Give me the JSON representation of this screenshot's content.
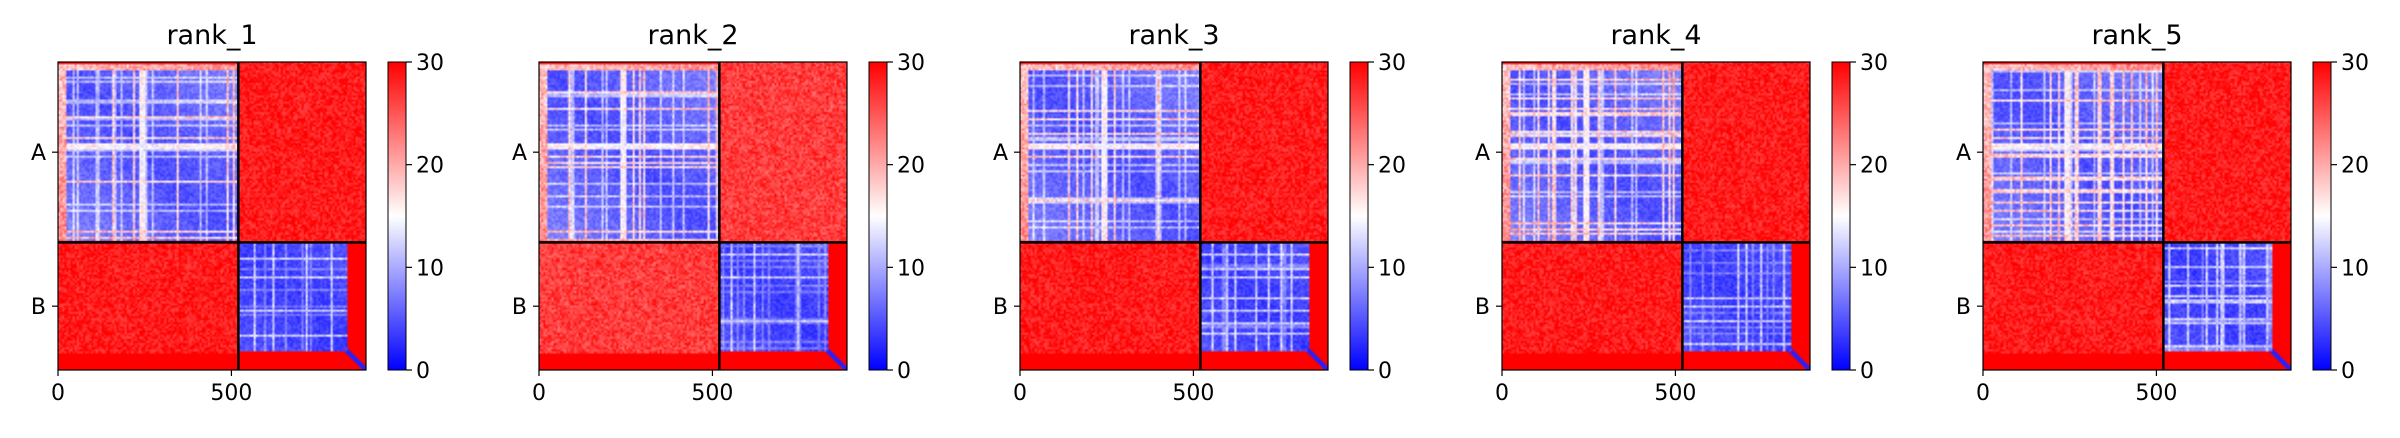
{
  "chart_data": [
    {
      "type": "heatmap",
      "title": "rank_1",
      "xlim": [
        0,
        888
      ],
      "x_ticks": [
        0,
        500
      ],
      "y_tick_labels": [
        "A",
        "B"
      ],
      "chain_boundary": 520,
      "colorbar": {
        "range": [
          0,
          30
        ],
        "ticks": [
          0,
          10,
          20,
          30
        ],
        "colors": [
          "#0000ff",
          "#ffffff",
          "#ff0000"
        ]
      },
      "regions": {
        "AA": "low",
        "AB": "high",
        "BA": "high",
        "BB": "low"
      }
    },
    {
      "type": "heatmap",
      "title": "rank_2",
      "xlim": [
        0,
        888
      ],
      "x_ticks": [
        0,
        500
      ],
      "y_tick_labels": [
        "A",
        "B"
      ],
      "chain_boundary": 520,
      "colorbar": {
        "range": [
          0,
          30
        ],
        "ticks": [
          0,
          10,
          20,
          30
        ],
        "colors": [
          "#0000ff",
          "#ffffff",
          "#ff0000"
        ]
      },
      "regions": {
        "AA": "low",
        "AB": "high",
        "BA": "high",
        "BB": "low"
      }
    },
    {
      "type": "heatmap",
      "title": "rank_3",
      "xlim": [
        0,
        888
      ],
      "x_ticks": [
        0,
        500
      ],
      "y_tick_labels": [
        "A",
        "B"
      ],
      "chain_boundary": 520,
      "colorbar": {
        "range": [
          0,
          30
        ],
        "ticks": [
          0,
          10,
          20,
          30
        ],
        "colors": [
          "#0000ff",
          "#ffffff",
          "#ff0000"
        ]
      },
      "regions": {
        "AA": "low",
        "AB": "high",
        "BA": "high",
        "BB": "low"
      }
    },
    {
      "type": "heatmap",
      "title": "rank_4",
      "xlim": [
        0,
        888
      ],
      "x_ticks": [
        0,
        500
      ],
      "y_tick_labels": [
        "A",
        "B"
      ],
      "chain_boundary": 520,
      "colorbar": {
        "range": [
          0,
          30
        ],
        "ticks": [
          0,
          10,
          20,
          30
        ],
        "colors": [
          "#0000ff",
          "#ffffff",
          "#ff0000"
        ]
      },
      "regions": {
        "AA": "low",
        "AB": "high",
        "BA": "high",
        "BB": "low"
      }
    },
    {
      "type": "heatmap",
      "title": "rank_5",
      "xlim": [
        0,
        888
      ],
      "x_ticks": [
        0,
        500
      ],
      "y_tick_labels": [
        "A",
        "B"
      ],
      "chain_boundary": 520,
      "colorbar": {
        "range": [
          0,
          30
        ],
        "ticks": [
          0,
          10,
          20,
          30
        ],
        "colors": [
          "#0000ff",
          "#ffffff",
          "#ff0000"
        ]
      },
      "regions": {
        "AA": "low",
        "AB": "high",
        "BA": "high",
        "BB": "low"
      }
    }
  ]
}
